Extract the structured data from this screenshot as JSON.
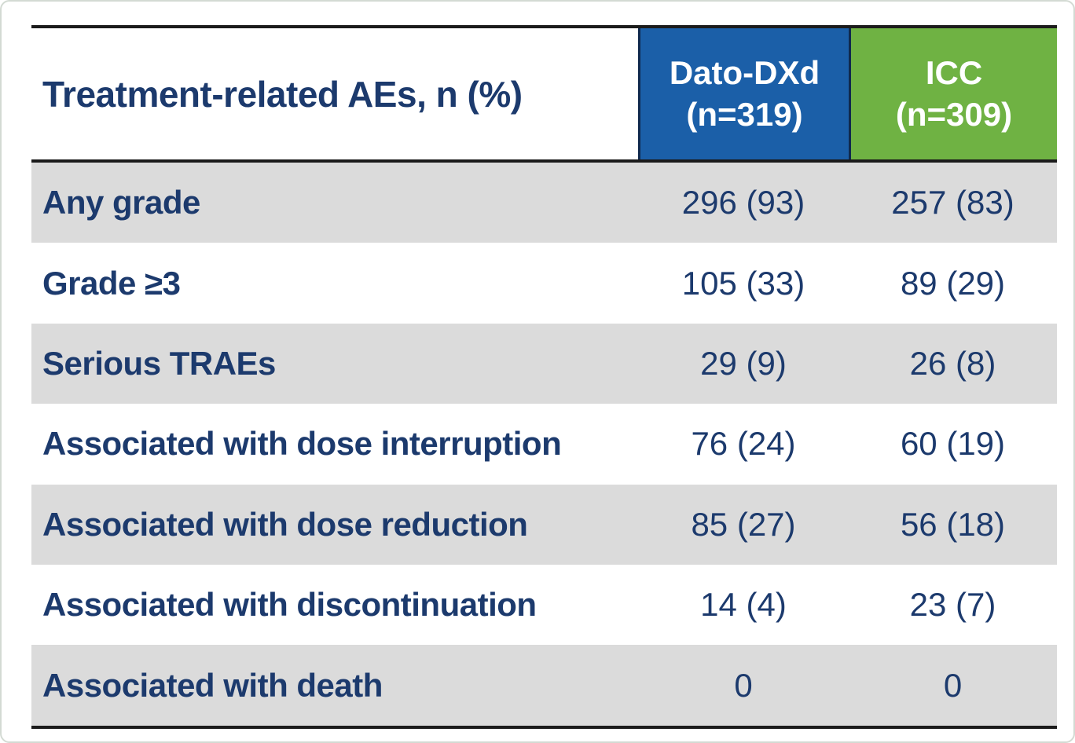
{
  "chart_data": {
    "type": "table",
    "title": "Treatment-related AEs, n (%)",
    "header": {
      "row_label_header": "Treatment-related AEs, n (%)",
      "columns": [
        {
          "label": "Dato-DXd",
          "sublabel": "(n=319)"
        },
        {
          "label": "ICC",
          "sublabel": "(n=309)"
        }
      ]
    },
    "rows": [
      {
        "label": "Any grade",
        "values": [
          "296 (93)",
          "257 (83)"
        ]
      },
      {
        "label": "Grade ≥3",
        "values": [
          "105 (33)",
          "89 (29)"
        ]
      },
      {
        "label": "Serious TRAEs",
        "values": [
          "29 (9)",
          "26 (8)"
        ]
      },
      {
        "label": "Associated with dose interruption",
        "values": [
          "76 (24)",
          "60 (19)"
        ]
      },
      {
        "label": "Associated with dose reduction",
        "values": [
          "85 (27)",
          "56 (18)"
        ]
      },
      {
        "label": "Associated with discontinuation",
        "values": [
          "14 (4)",
          "23 (7)"
        ]
      },
      {
        "label": "Associated with death",
        "values": [
          "0",
          "0"
        ]
      }
    ]
  },
  "colors": {
    "dato_header_bg": "#1b5fa8",
    "icc_header_bg": "#6fb243",
    "header_text": "#ffffff",
    "body_text": "#1c3a6d",
    "row_alt_bg": "#dbdbdb",
    "row_bg": "#ffffff",
    "rule": "#1b1b1b"
  }
}
